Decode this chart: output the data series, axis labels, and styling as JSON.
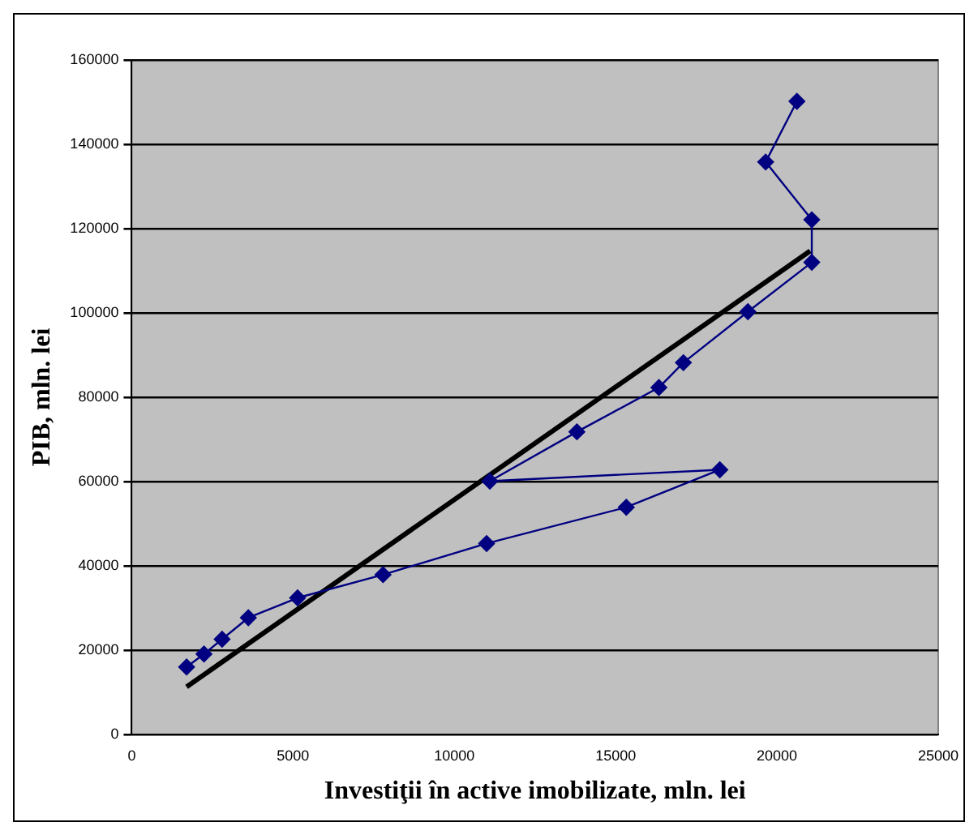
{
  "chart_data": {
    "type": "line",
    "xlabel": "Investiţii în active imobilizate, mln. lei",
    "ylabel": "PIB, mln. lei",
    "xlim": [
      0,
      25000
    ],
    "xticks": [
      0,
      5000,
      10000,
      15000,
      20000,
      25000
    ],
    "ylim": [
      0,
      160000
    ],
    "yticks": [
      0,
      20000,
      40000,
      60000,
      80000,
      100000,
      120000,
      140000,
      160000
    ],
    "grid": "y",
    "marker": "diamond",
    "legend": false,
    "series": [
      {
        "color": "#000080",
        "x": [
          1700,
          2240,
          2800,
          3615,
          5140,
          7790,
          11000,
          15330,
          18230,
          11100,
          13800,
          16340,
          17100,
          19100,
          21080,
          21080,
          19650,
          20620
        ],
        "values": [
          16000,
          19100,
          22600,
          27700,
          32400,
          37900,
          45300,
          53900,
          62800,
          60100,
          71800,
          82300,
          88200,
          100300,
          112000,
          122100,
          135800,
          150200
        ]
      },
      {
        "type": "line",
        "color": "#000000",
        "marker": "none",
        "x": [
          1700,
          21030
        ],
        "values": [
          11300,
          114700
        ]
      }
    ]
  }
}
